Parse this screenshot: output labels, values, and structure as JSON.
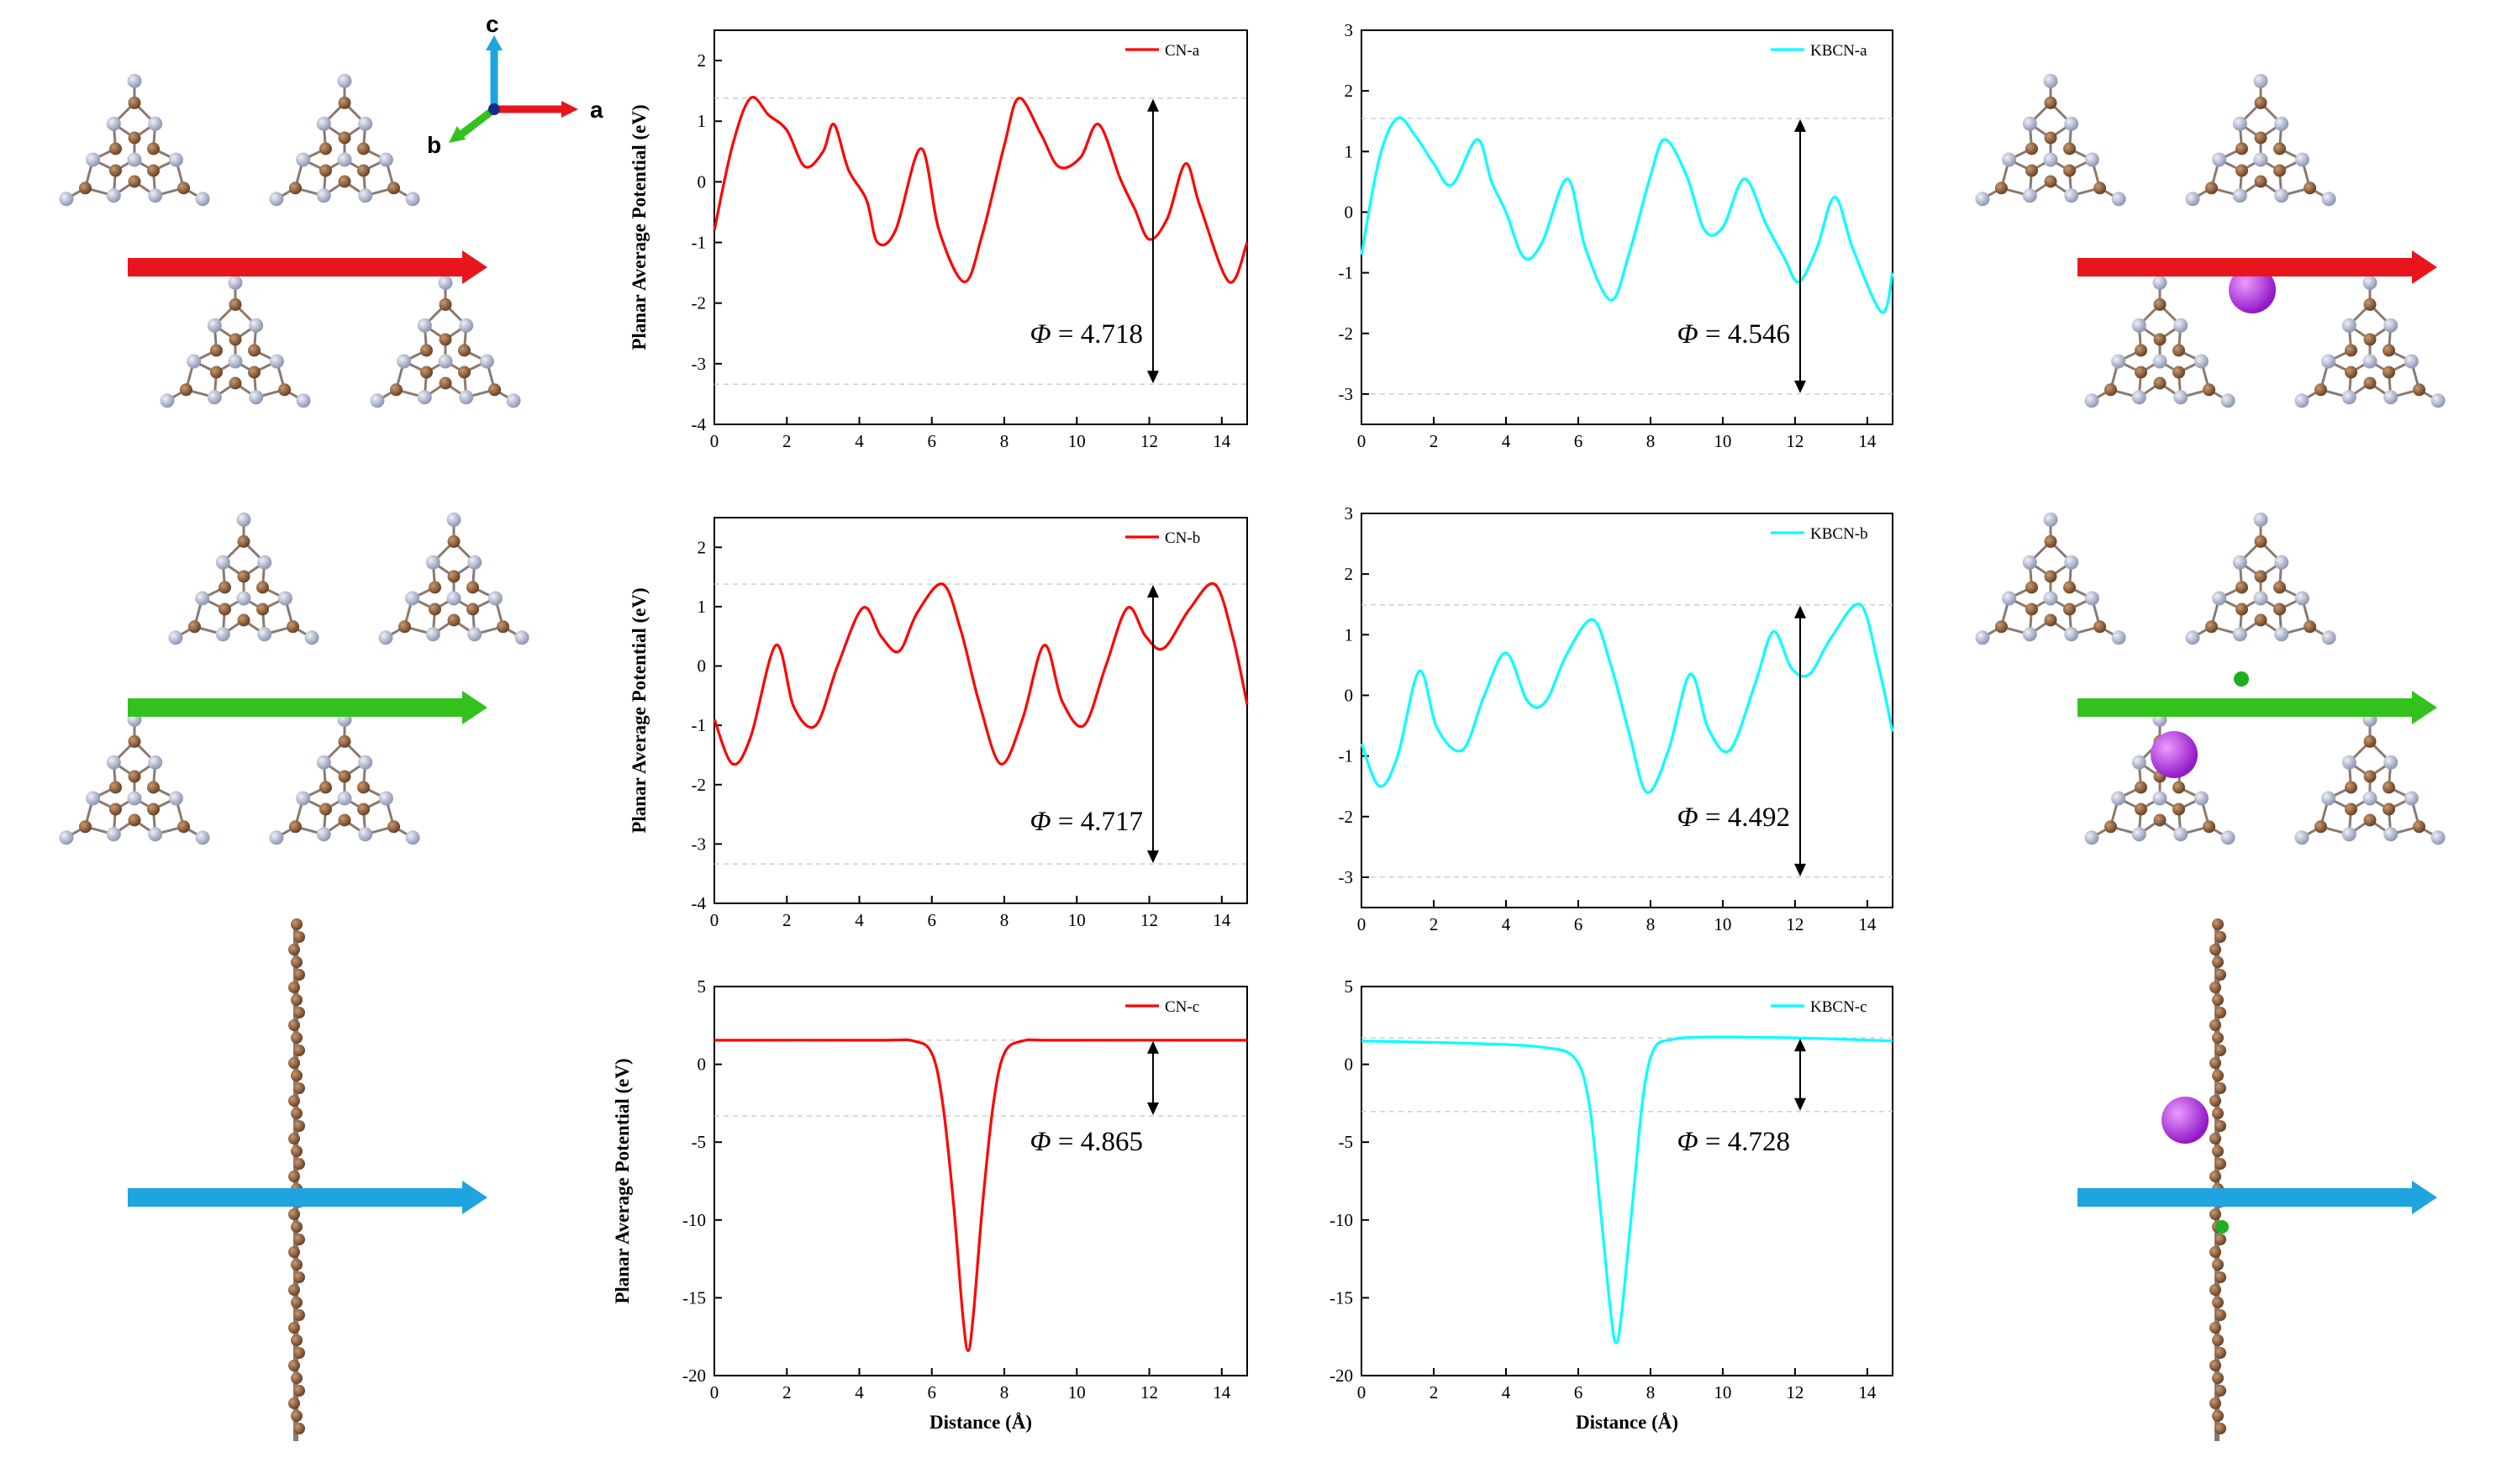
{
  "figure": {
    "axis_labels": {
      "c": "c",
      "a": "a",
      "b": "b"
    },
    "colors": {
      "cn": "#ff0000",
      "kbcn": "#00ffff",
      "carbon": "#8c5e3c",
      "nitrogen": "#b4bcd4",
      "potassium": "#c03cf0",
      "boron": "#1fae1f",
      "arrow_a": "#e8161c",
      "arrow_b": "#33c21c",
      "arrow_c": "#1ea5e0"
    }
  },
  "chart_data": [
    {
      "id": "cn-a",
      "type": "line",
      "title": "",
      "legend": "CN-a",
      "xlabel": "",
      "ylabel": "Planar Average Potential (eV)",
      "xlim": [
        0,
        14.7
      ],
      "ylim": [
        -4,
        2.5
      ],
      "xticks": [
        0,
        2,
        4,
        6,
        8,
        10,
        12,
        14
      ],
      "yticks": [
        -4,
        -3,
        -2,
        -1,
        0,
        1,
        2
      ],
      "vacuum": 1.38,
      "fermi": -3.338,
      "phi_label": "Φ = 4.718",
      "series_color": "#ff0000",
      "points": [
        [
          0,
          -0.8
        ],
        [
          0.5,
          0.6
        ],
        [
          1.0,
          1.38
        ],
        [
          1.5,
          1.1
        ],
        [
          2.0,
          0.85
        ],
        [
          2.5,
          0.25
        ],
        [
          3.0,
          0.5
        ],
        [
          3.3,
          0.95
        ],
        [
          3.7,
          0.2
        ],
        [
          4.2,
          -0.3
        ],
        [
          4.5,
          -1.0
        ],
        [
          5.0,
          -0.8
        ],
        [
          5.7,
          0.55
        ],
        [
          6.2,
          -0.8
        ],
        [
          6.9,
          -1.65
        ],
        [
          7.4,
          -0.85
        ],
        [
          8.0,
          0.6
        ],
        [
          8.4,
          1.38
        ],
        [
          9.0,
          0.8
        ],
        [
          9.5,
          0.25
        ],
        [
          10.1,
          0.4
        ],
        [
          10.6,
          0.95
        ],
        [
          11.2,
          0.05
        ],
        [
          11.6,
          -0.45
        ],
        [
          12.0,
          -0.95
        ],
        [
          12.5,
          -0.6
        ],
        [
          13.0,
          0.3
        ],
        [
          13.4,
          -0.4
        ],
        [
          14.2,
          -1.65
        ],
        [
          14.7,
          -1.0
        ]
      ]
    },
    {
      "id": "kbcn-a",
      "type": "line",
      "title": "",
      "legend": "KBCN-a",
      "xlabel": "",
      "ylabel": "",
      "xlim": [
        0,
        14.7
      ],
      "ylim": [
        -3.5,
        3
      ],
      "xticks": [
        0,
        2,
        4,
        6,
        8,
        10,
        12,
        14
      ],
      "yticks": [
        -3,
        -2,
        -1,
        0,
        1,
        2,
        3
      ],
      "vacuum": 1.546,
      "fermi": -3.0,
      "phi_label": "Φ = 4.546",
      "series_color": "#00ffff",
      "points": [
        [
          0,
          -0.7
        ],
        [
          0.5,
          0.9
        ],
        [
          1.0,
          1.55
        ],
        [
          1.5,
          1.25
        ],
        [
          2.0,
          0.8
        ],
        [
          2.5,
          0.45
        ],
        [
          3.2,
          1.2
        ],
        [
          3.6,
          0.5
        ],
        [
          4.0,
          0.0
        ],
        [
          4.5,
          -0.75
        ],
        [
          5.0,
          -0.5
        ],
        [
          5.7,
          0.55
        ],
        [
          6.2,
          -0.6
        ],
        [
          6.9,
          -1.45
        ],
        [
          7.4,
          -0.7
        ],
        [
          8.0,
          0.6
        ],
        [
          8.4,
          1.2
        ],
        [
          9.0,
          0.6
        ],
        [
          9.5,
          -0.3
        ],
        [
          10.0,
          -0.25
        ],
        [
          10.6,
          0.55
        ],
        [
          11.2,
          -0.2
        ],
        [
          11.7,
          -0.75
        ],
        [
          12.1,
          -1.15
        ],
        [
          12.6,
          -0.6
        ],
        [
          13.1,
          0.25
        ],
        [
          13.6,
          -0.6
        ],
        [
          14.4,
          -1.65
        ],
        [
          14.7,
          -1.0
        ]
      ]
    },
    {
      "id": "cn-b",
      "type": "line",
      "title": "",
      "legend": "CN-b",
      "xlabel": "",
      "ylabel": "Planar Average Potential (eV)",
      "xlim": [
        0,
        14.7
      ],
      "ylim": [
        -4,
        2.5
      ],
      "xticks": [
        0,
        2,
        4,
        6,
        8,
        10,
        12,
        14
      ],
      "yticks": [
        -4,
        -3,
        -2,
        -1,
        0,
        1,
        2
      ],
      "vacuum": 1.38,
      "fermi": -3.337,
      "phi_label": "Φ = 4.717",
      "series_color": "#ff0000",
      "points": [
        [
          0,
          -0.9
        ],
        [
          0.5,
          -1.65
        ],
        [
          1.0,
          -1.2
        ],
        [
          1.7,
          0.35
        ],
        [
          2.2,
          -0.7
        ],
        [
          2.8,
          -1.0
        ],
        [
          3.4,
          0.0
        ],
        [
          4.1,
          0.98
        ],
        [
          4.6,
          0.5
        ],
        [
          5.1,
          0.25
        ],
        [
          5.6,
          0.9
        ],
        [
          6.3,
          1.38
        ],
        [
          6.8,
          0.6
        ],
        [
          7.3,
          -0.6
        ],
        [
          7.9,
          -1.65
        ],
        [
          8.5,
          -0.9
        ],
        [
          9.1,
          0.35
        ],
        [
          9.6,
          -0.6
        ],
        [
          10.2,
          -1.0
        ],
        [
          10.8,
          0.0
        ],
        [
          11.4,
          0.98
        ],
        [
          11.9,
          0.5
        ],
        [
          12.4,
          0.3
        ],
        [
          13.1,
          0.95
        ],
        [
          13.8,
          1.38
        ],
        [
          14.3,
          0.5
        ],
        [
          14.7,
          -0.65
        ]
      ]
    },
    {
      "id": "kbcn-b",
      "type": "line",
      "title": "",
      "legend": "KBCN-b",
      "xlabel": "",
      "ylabel": "",
      "xlim": [
        0,
        14.7
      ],
      "ylim": [
        -3.5,
        3
      ],
      "xticks": [
        0,
        2,
        4,
        6,
        8,
        10,
        12,
        14
      ],
      "yticks": [
        -3,
        -2,
        -1,
        0,
        1,
        2,
        3
      ],
      "vacuum": 1.492,
      "fermi": -3.0,
      "phi_label": "Φ = 4.492",
      "series_color": "#00ffff",
      "points": [
        [
          0,
          -0.8
        ],
        [
          0.5,
          -1.5
        ],
        [
          1.0,
          -1.0
        ],
        [
          1.6,
          0.4
        ],
        [
          2.1,
          -0.55
        ],
        [
          2.8,
          -0.9
        ],
        [
          3.4,
          0.0
        ],
        [
          4.0,
          0.7
        ],
        [
          4.6,
          -0.1
        ],
        [
          5.1,
          -0.1
        ],
        [
          5.7,
          0.7
        ],
        [
          6.4,
          1.25
        ],
        [
          6.9,
          0.5
        ],
        [
          7.4,
          -0.6
        ],
        [
          7.9,
          -1.6
        ],
        [
          8.5,
          -0.9
        ],
        [
          9.1,
          0.35
        ],
        [
          9.6,
          -0.55
        ],
        [
          10.2,
          -0.9
        ],
        [
          10.9,
          0.2
        ],
        [
          11.4,
          1.05
        ],
        [
          11.9,
          0.45
        ],
        [
          12.4,
          0.35
        ],
        [
          13.0,
          0.95
        ],
        [
          13.8,
          1.5
        ],
        [
          14.3,
          0.5
        ],
        [
          14.7,
          -0.6
        ]
      ]
    },
    {
      "id": "cn-c",
      "type": "line",
      "title": "",
      "legend": "CN-c",
      "xlabel": "Distance (Å)",
      "ylabel": "Planar Average Potential (eV)",
      "xlim": [
        0,
        14.7
      ],
      "ylim": [
        -20,
        5
      ],
      "xticks": [
        0,
        2,
        4,
        6,
        8,
        10,
        12,
        14
      ],
      "yticks": [
        -20,
        -15,
        -10,
        -5,
        0,
        5
      ],
      "vacuum": 1.55,
      "fermi": -3.315,
      "phi_label": "Φ = 4.865",
      "series_color": "#ff0000",
      "points": [
        [
          0,
          1.55
        ],
        [
          4.5,
          1.55
        ],
        [
          5.5,
          1.5
        ],
        [
          6.0,
          0.7
        ],
        [
          6.3,
          -2.5
        ],
        [
          6.6,
          -9.0
        ],
        [
          6.85,
          -16.0
        ],
        [
          7.0,
          -18.4
        ],
        [
          7.15,
          -16.0
        ],
        [
          7.4,
          -9.0
        ],
        [
          7.7,
          -2.5
        ],
        [
          8.0,
          0.7
        ],
        [
          8.5,
          1.5
        ],
        [
          9.5,
          1.55
        ],
        [
          14.7,
          1.55
        ]
      ]
    },
    {
      "id": "kbcn-c",
      "type": "line",
      "title": "",
      "legend": "KBCN-c",
      "xlabel": "Distance (Å)",
      "ylabel": "",
      "xlim": [
        0,
        14.7
      ],
      "ylim": [
        -20,
        5
      ],
      "xticks": [
        0,
        2,
        4,
        6,
        8,
        10,
        12,
        14
      ],
      "yticks": [
        -20,
        -15,
        -10,
        -5,
        0,
        5
      ],
      "vacuum": 1.7,
      "fermi": -3.03,
      "phi_label": "Φ = 4.728",
      "series_color": "#00ffff",
      "points": [
        [
          0,
          1.5
        ],
        [
          3.0,
          1.35
        ],
        [
          5.0,
          1.1
        ],
        [
          5.9,
          0.4
        ],
        [
          6.3,
          -2.5
        ],
        [
          6.6,
          -9.0
        ],
        [
          6.9,
          -16.0
        ],
        [
          7.05,
          -17.9
        ],
        [
          7.2,
          -16.0
        ],
        [
          7.5,
          -9.0
        ],
        [
          7.8,
          -2.0
        ],
        [
          8.1,
          1.0
        ],
        [
          8.6,
          1.6
        ],
        [
          9.5,
          1.75
        ],
        [
          12.0,
          1.7
        ],
        [
          14.7,
          1.5
        ]
      ]
    }
  ]
}
